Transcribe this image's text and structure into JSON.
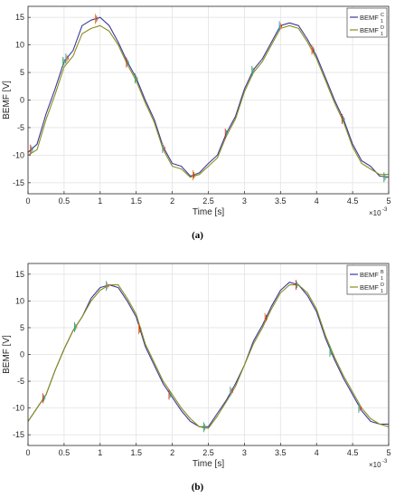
{
  "captions": [
    "(a)",
    "(b)"
  ],
  "colors": {
    "series1": "#3a3a9e",
    "series2": "#8c8c1c",
    "spike_red": "#d9262a",
    "spike_green": "#3ea33e",
    "spike_cyan": "#2aa7c9",
    "spike_orange": "#e07b12"
  },
  "chart_data": [
    {
      "type": "line",
      "xlabel": "Time  [s]",
      "ylabel": "BEMF [V]",
      "x_exponent_label": "×10",
      "x_exponent_power": "-3",
      "xlim": [
        0,
        5
      ],
      "ylim": [
        -17,
        17
      ],
      "xticks": [
        "0",
        "0.5",
        "1",
        "1.5",
        "2",
        "2.5",
        "3",
        "3.5",
        "4",
        "4.5",
        "5"
      ],
      "yticks": [
        "15",
        "10",
        "5",
        "0",
        "-5",
        "-10",
        "-15"
      ],
      "grid": true,
      "legend_position": "top-right",
      "series": [
        {
          "name": "BEMF",
          "sup": "C",
          "sub": "1",
          "x": [
            0,
            0.125,
            0.25,
            0.375,
            0.5,
            0.625,
            0.75,
            0.875,
            1.0,
            1.125,
            1.25,
            1.375,
            1.5,
            1.625,
            1.75,
            1.875,
            2.0,
            2.125,
            2.25,
            2.375,
            2.5,
            2.625,
            2.75,
            2.875,
            3.0,
            3.125,
            3.25,
            3.375,
            3.5,
            3.625,
            3.75,
            3.875,
            4.0,
            4.125,
            4.25,
            4.375,
            4.5,
            4.625,
            4.75,
            4.875,
            5.0
          ],
          "values": [
            -9.5,
            -8.0,
            -2.5,
            2.0,
            7.0,
            9.0,
            13.5,
            14.5,
            15.0,
            13.5,
            10.5,
            7.0,
            4.0,
            0.0,
            -3.5,
            -8.5,
            -11.5,
            -12.0,
            -13.8,
            -13.2,
            -11.5,
            -10.0,
            -6.0,
            -3.0,
            2.0,
            5.5,
            7.5,
            10.5,
            13.5,
            14.0,
            13.5,
            11.0,
            8.0,
            4.0,
            0.0,
            -3.5,
            -8.0,
            -11.0,
            -12.0,
            -13.8,
            -14.0
          ]
        },
        {
          "name": "BEMF",
          "sup": "D",
          "sub": "1",
          "x": [
            0,
            0.125,
            0.25,
            0.375,
            0.5,
            0.625,
            0.75,
            0.875,
            1.0,
            1.125,
            1.25,
            1.375,
            1.5,
            1.625,
            1.75,
            1.875,
            2.0,
            2.125,
            2.25,
            2.375,
            2.5,
            2.625,
            2.75,
            2.875,
            3.0,
            3.125,
            3.25,
            3.375,
            3.5,
            3.625,
            3.75,
            3.875,
            4.0,
            4.125,
            4.25,
            4.375,
            4.5,
            4.625,
            4.75,
            4.875,
            5.0
          ],
          "values": [
            -10.0,
            -9.0,
            -3.5,
            1.0,
            6.0,
            8.0,
            12.0,
            13.0,
            13.5,
            12.5,
            10.0,
            6.5,
            3.5,
            -0.5,
            -4.0,
            -9.0,
            -12.0,
            -12.5,
            -14.0,
            -13.5,
            -12.0,
            -10.5,
            -6.5,
            -3.5,
            1.5,
            5.0,
            7.0,
            10.0,
            13.0,
            13.5,
            13.0,
            10.5,
            7.5,
            3.5,
            -0.5,
            -4.0,
            -8.5,
            -11.5,
            -12.5,
            -13.5,
            -13.5
          ]
        }
      ]
    },
    {
      "type": "line",
      "xlabel": "Time  [s]",
      "ylabel": "BEMF [V]",
      "x_exponent_label": "×10",
      "x_exponent_power": "-3",
      "xlim": [
        0,
        5
      ],
      "ylim": [
        -17,
        17
      ],
      "xticks": [
        "0",
        "0.5",
        "1",
        "1.5",
        "2",
        "2.5",
        "3",
        "3.5",
        "4",
        "4.5",
        "5"
      ],
      "yticks": [
        "15",
        "10",
        "5",
        "0",
        "-5",
        "-10",
        "-15"
      ],
      "grid": true,
      "legend_position": "top-right",
      "series": [
        {
          "name": "BEMF",
          "sup": "B",
          "sub": "1",
          "x": [
            0,
            0.125,
            0.25,
            0.375,
            0.5,
            0.625,
            0.75,
            0.875,
            1.0,
            1.125,
            1.25,
            1.375,
            1.5,
            1.625,
            1.75,
            1.875,
            2.0,
            2.125,
            2.25,
            2.375,
            2.5,
            2.625,
            2.75,
            2.875,
            3.0,
            3.125,
            3.25,
            3.375,
            3.5,
            3.625,
            3.75,
            3.875,
            4.0,
            4.125,
            4.25,
            4.375,
            4.5,
            4.625,
            4.75,
            4.875,
            5.0
          ],
          "values": [
            -12.5,
            -10.0,
            -7.5,
            -3.0,
            1.0,
            4.5,
            7.0,
            10.5,
            12.5,
            13.0,
            12.5,
            10.0,
            7.0,
            1.5,
            -2.0,
            -5.5,
            -8.0,
            -10.5,
            -12.5,
            -13.5,
            -13.5,
            -11.0,
            -8.5,
            -5.5,
            -2.0,
            2.5,
            5.5,
            9.0,
            12.0,
            13.5,
            13.0,
            11.0,
            8.0,
            3.0,
            -1.0,
            -4.5,
            -7.5,
            -10.5,
            -12.5,
            -13.0,
            -13.0
          ]
        },
        {
          "name": "BEMF",
          "sup": "D",
          "sub": "1",
          "x": [
            0,
            0.125,
            0.25,
            0.375,
            0.5,
            0.625,
            0.75,
            0.875,
            1.0,
            1.125,
            1.25,
            1.375,
            1.5,
            1.625,
            1.75,
            1.875,
            2.0,
            2.125,
            2.25,
            2.375,
            2.5,
            2.625,
            2.75,
            2.875,
            3.0,
            3.125,
            3.25,
            3.375,
            3.5,
            3.625,
            3.75,
            3.875,
            4.0,
            4.125,
            4.25,
            4.375,
            4.5,
            4.625,
            4.75,
            4.875,
            5.0
          ],
          "values": [
            -12.5,
            -10.0,
            -7.5,
            -3.0,
            1.0,
            4.5,
            7.0,
            10.0,
            12.0,
            13.0,
            13.0,
            10.5,
            7.5,
            2.0,
            -1.5,
            -5.0,
            -7.5,
            -10.0,
            -12.0,
            -13.5,
            -13.8,
            -11.5,
            -8.8,
            -6.0,
            -2.0,
            2.0,
            5.0,
            8.5,
            11.5,
            13.0,
            13.0,
            11.5,
            8.5,
            3.5,
            -0.5,
            -4.0,
            -7.0,
            -10.0,
            -12.0,
            -13.0,
            -13.5
          ]
        }
      ]
    }
  ]
}
